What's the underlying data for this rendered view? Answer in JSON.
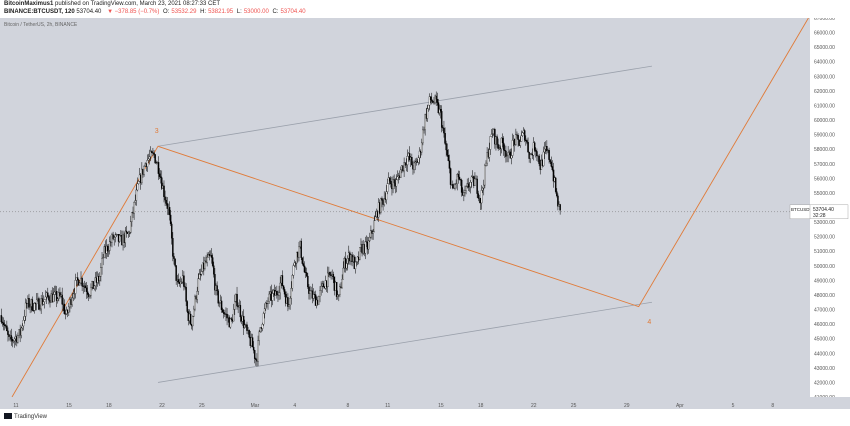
{
  "header": {
    "author": "BitcoinMaximus1",
    "published_text": "published on TradingView.com, March 23, 2021 08:27:33 CET",
    "symbol": "BINANCE:BTCUSDT, 120",
    "price": "53704.40",
    "change": "▼ −378.85 (−0.7%)",
    "ohlc_o_label": "O:",
    "ohlc_o": "53532.29",
    "ohlc_h_label": "H:",
    "ohlc_h": "53821.95",
    "ohlc_l_label": "L:",
    "ohlc_l": "53000.00",
    "ohlc_c_label": "C:",
    "ohlc_c": "53704.40"
  },
  "legend": "Bitcoin / TetherUS, 2h, BINANCE",
  "footer": {
    "brand": "TradingView"
  },
  "price_tag": {
    "symbol": "BTCUSDT",
    "price": "53704.40",
    "countdown": "32:28"
  },
  "colors": {
    "plot_bg": "#d1d4dc",
    "candle": "#000000",
    "wave": "#e07b39",
    "channel": "#9aa0ab"
  },
  "chart_data": {
    "type": "candlestick",
    "title": "Bitcoin / TetherUS, 2h, BINANCE",
    "ylim": [
      41000,
      67000
    ],
    "y_ticks": [
      "41000.00",
      "42000.00",
      "43000.00",
      "44000.00",
      "45000.00",
      "46000.00",
      "47000.00",
      "48000.00",
      "49000.00",
      "50000.00",
      "51000.00",
      "52000.00",
      "53000.00",
      "54000.00",
      "55000.00",
      "56000.00",
      "57000.00",
      "58000.00",
      "59000.00",
      "60000.00",
      "61000.00",
      "62000.00",
      "63000.00",
      "64000.00",
      "65000.00",
      "66000.00",
      "67000.00"
    ],
    "x_ticks": [
      {
        "label": "11",
        "day": 11
      },
      {
        "label": "15",
        "day": 15
      },
      {
        "label": "18",
        "day": 18
      },
      {
        "label": "22",
        "day": 22
      },
      {
        "label": "25",
        "day": 25
      },
      {
        "label": "Mar",
        "day": 29
      },
      {
        "label": "4",
        "day": 32
      },
      {
        "label": "8",
        "day": 36
      },
      {
        "label": "11",
        "day": 39
      },
      {
        "label": "15",
        "day": 43
      },
      {
        "label": "18",
        "day": 46
      },
      {
        "label": "22",
        "day": 50
      },
      {
        "label": "25",
        "day": 53
      },
      {
        "label": "29",
        "day": 57
      },
      {
        "label": "Apr",
        "day": 61
      },
      {
        "label": "5",
        "day": 65
      },
      {
        "label": "8",
        "day": 68
      }
    ],
    "x_range": [
      9.8,
      70.8
    ],
    "price_path": [
      [
        9.9,
        46600
      ],
      [
        10.5,
        44800
      ],
      [
        11.3,
        45300
      ],
      [
        11.8,
        47400
      ],
      [
        12.5,
        47300
      ],
      [
        13.5,
        47900
      ],
      [
        14.4,
        47800
      ],
      [
        14.8,
        46500
      ],
      [
        15.3,
        48300
      ],
      [
        15.8,
        49200
      ],
      [
        16.5,
        48200
      ],
      [
        17.3,
        49200
      ],
      [
        17.6,
        50800
      ],
      [
        18.3,
        51900
      ],
      [
        18.9,
        51700
      ],
      [
        19.5,
        52200
      ],
      [
        20.2,
        55500
      ],
      [
        20.8,
        57200
      ],
      [
        21.4,
        57600
      ],
      [
        21.8,
        56600
      ],
      [
        22.1,
        55200
      ],
      [
        22.5,
        53800
      ],
      [
        22.9,
        50200
      ],
      [
        23.2,
        48500
      ],
      [
        23.6,
        49200
      ],
      [
        23.9,
        46800
      ],
      [
        24.2,
        46000
      ],
      [
        24.7,
        48800
      ],
      [
        25.2,
        50100
      ],
      [
        25.7,
        50600
      ],
      [
        26.1,
        48000
      ],
      [
        26.6,
        46900
      ],
      [
        27.2,
        46000
      ],
      [
        27.6,
        47800
      ],
      [
        28.1,
        46200
      ],
      [
        28.5,
        45100
      ],
      [
        28.8,
        44500
      ],
      [
        29.1,
        43500
      ],
      [
        29.4,
        45800
      ],
      [
        30.0,
        47700
      ],
      [
        30.6,
        48100
      ],
      [
        31.0,
        49000
      ],
      [
        31.5,
        47200
      ],
      [
        32.0,
        50500
      ],
      [
        32.4,
        51300
      ],
      [
        32.8,
        49200
      ],
      [
        33.2,
        48000
      ],
      [
        33.7,
        47600
      ],
      [
        34.2,
        48800
      ],
      [
        34.8,
        49400
      ],
      [
        35.3,
        47600
      ],
      [
        35.7,
        50100
      ],
      [
        36.2,
        50800
      ],
      [
        36.6,
        49800
      ],
      [
        37.0,
        51200
      ],
      [
        37.5,
        51300
      ],
      [
        37.9,
        52600
      ],
      [
        38.2,
        53700
      ],
      [
        38.7,
        54600
      ],
      [
        39.1,
        55800
      ],
      [
        39.6,
        55600
      ],
      [
        40.0,
        56600
      ],
      [
        40.5,
        57500
      ],
      [
        41.0,
        56700
      ],
      [
        41.4,
        57600
      ],
      [
        41.8,
        60100
      ],
      [
        42.2,
        61400
      ],
      [
        42.6,
        61200
      ],
      [
        43.0,
        60300
      ],
      [
        43.3,
        58400
      ],
      [
        43.6,
        56800
      ],
      [
        43.9,
        55000
      ],
      [
        44.3,
        56200
      ],
      [
        44.7,
        54600
      ],
      [
        45.1,
        55600
      ],
      [
        45.6,
        55800
      ],
      [
        46.0,
        54500
      ],
      [
        46.5,
        57600
      ],
      [
        46.9,
        59200
      ],
      [
        47.3,
        58200
      ],
      [
        47.7,
        58400
      ],
      [
        48.1,
        57300
      ],
      [
        48.5,
        58600
      ],
      [
        48.9,
        58500
      ],
      [
        49.3,
        59100
      ],
      [
        49.7,
        57500
      ],
      [
        50.1,
        58300
      ],
      [
        50.5,
        56800
      ],
      [
        50.9,
        57900
      ],
      [
        51.3,
        57200
      ],
      [
        51.7,
        54800
      ],
      [
        52.0,
        53500
      ]
    ],
    "annotations": {
      "wave_labels": [
        {
          "text": "3",
          "x": 21.6,
          "y": 59100
        },
        {
          "text": "4",
          "x": 58.7,
          "y": 46000
        }
      ],
      "wave_path": [
        [
          10.7,
          41000
        ],
        [
          21.7,
          58200
        ],
        [
          57.9,
          47200
        ],
        [
          71.2,
          67800
        ]
      ],
      "channel_upper": [
        [
          21.7,
          58200
        ],
        [
          58.9,
          63700
        ]
      ],
      "channel_lower": [
        [
          21.7,
          42000
        ],
        [
          58.9,
          47500
        ]
      ]
    }
  }
}
